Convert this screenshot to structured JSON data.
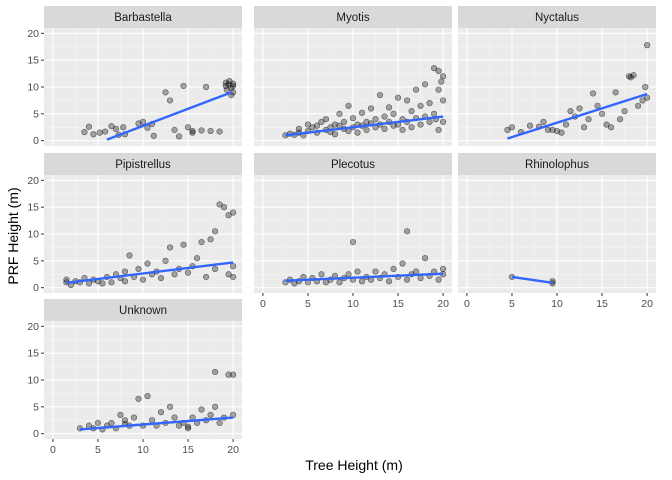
{
  "chart_data": {
    "type": "scatter",
    "xlabel": "Tree Height (m)",
    "ylabel": "PRF Height (m)",
    "xlim": [
      0,
      20
    ],
    "ylim": [
      0,
      20
    ],
    "x_ticks": [
      0,
      5,
      10,
      15,
      20
    ],
    "y_ticks": [
      0,
      5,
      10,
      15,
      20
    ],
    "grid": true,
    "point_color": "#000000",
    "trend_color": "#3366FF",
    "panel_background": "#EBEBEB",
    "strip_background": "#D9D9D9",
    "panels": [
      {
        "name": "Barbastella",
        "trend": {
          "x": [
            6,
            19.8
          ],
          "y": [
            0.2,
            9.0
          ]
        },
        "points": [
          [
            3.5,
            1.6
          ],
          [
            4,
            2.6
          ],
          [
            4.5,
            1.2
          ],
          [
            5.2,
            1.5
          ],
          [
            5.8,
            1.7
          ],
          [
            6.5,
            2.7
          ],
          [
            7,
            2.2
          ],
          [
            7.3,
            1.1
          ],
          [
            7.8,
            2.5
          ],
          [
            8,
            1.2
          ],
          [
            9.5,
            3.2
          ],
          [
            10,
            3.5
          ],
          [
            10.5,
            2.4
          ],
          [
            11,
            3.1
          ],
          [
            11.2,
            0.9
          ],
          [
            12.5,
            9.0
          ],
          [
            13,
            7.5
          ],
          [
            13.5,
            2.0
          ],
          [
            14,
            0.8
          ],
          [
            14.5,
            10.2
          ],
          [
            15,
            2.5
          ],
          [
            15.5,
            1.8
          ],
          [
            15.5,
            1.5
          ],
          [
            16.5,
            1.9
          ],
          [
            17,
            10.0
          ],
          [
            17.5,
            1.8
          ],
          [
            18.5,
            1.7
          ],
          [
            19.2,
            10.8
          ],
          [
            19.2,
            10.2
          ],
          [
            19.3,
            9.5
          ],
          [
            19.5,
            10.5
          ],
          [
            19.6,
            11.1
          ],
          [
            19.8,
            9.8
          ],
          [
            19.8,
            8.5
          ],
          [
            20,
            10.6
          ],
          [
            20,
            9.0
          ],
          [
            20,
            10.2
          ]
        ]
      },
      {
        "name": "Myotis",
        "trend": {
          "x": [
            2.5,
            20
          ],
          "y": [
            1.0,
            4.5
          ]
        },
        "points": [
          [
            2.5,
            1.0
          ],
          [
            3,
            1.3
          ],
          [
            3.5,
            1.1
          ],
          [
            4,
            1.5
          ],
          [
            4,
            2.2
          ],
          [
            4.5,
            1.0
          ],
          [
            5,
            1.8
          ],
          [
            5,
            3.0
          ],
          [
            5.5,
            2.5
          ],
          [
            6,
            1.5
          ],
          [
            6,
            2.8
          ],
          [
            6.5,
            3.5
          ],
          [
            7,
            2.0
          ],
          [
            7,
            4.0
          ],
          [
            7.5,
            1.6
          ],
          [
            7.5,
            2.5
          ],
          [
            8,
            3.0
          ],
          [
            8,
            1.2
          ],
          [
            8.5,
            2.8
          ],
          [
            8.5,
            5.0
          ],
          [
            9,
            2.2
          ],
          [
            9,
            3.5
          ],
          [
            9.5,
            1.8
          ],
          [
            9.5,
            6.5
          ],
          [
            10,
            2.5
          ],
          [
            10,
            4.2
          ],
          [
            10.5,
            3.0
          ],
          [
            10.5,
            1.5
          ],
          [
            11,
            2.8
          ],
          [
            11,
            5.2
          ],
          [
            11.5,
            3.5
          ],
          [
            11.5,
            2.0
          ],
          [
            12,
            3.2
          ],
          [
            12,
            6.0
          ],
          [
            12.5,
            2.5
          ],
          [
            12.5,
            4.0
          ],
          [
            13,
            3.0
          ],
          [
            13,
            8.5
          ],
          [
            13.5,
            2.2
          ],
          [
            13.5,
            4.5
          ],
          [
            14,
            3.5
          ],
          [
            14,
            6.2
          ],
          [
            14.5,
            2.8
          ],
          [
            14.5,
            5.0
          ],
          [
            15,
            3.0
          ],
          [
            15,
            8.0
          ],
          [
            15.5,
            4.0
          ],
          [
            15.5,
            2.0
          ],
          [
            16,
            3.5
          ],
          [
            16,
            7.5
          ],
          [
            16.5,
            2.5
          ],
          [
            16.5,
            5.5
          ],
          [
            17,
            4.2
          ],
          [
            17,
            9.5
          ],
          [
            17.5,
            3.0
          ],
          [
            17.5,
            6.5
          ],
          [
            18,
            4.5
          ],
          [
            18,
            10.5
          ],
          [
            18.5,
            3.5
          ],
          [
            18.5,
            7.0
          ],
          [
            19,
            13.5
          ],
          [
            19,
            5.0
          ],
          [
            19.2,
            4.0
          ],
          [
            19.5,
            13.0
          ],
          [
            19.5,
            9.5
          ],
          [
            19.8,
            11.0
          ],
          [
            20,
            12.0
          ],
          [
            20,
            3.5
          ],
          [
            20,
            7.5
          ],
          [
            19.5,
            2.0
          ]
        ]
      },
      {
        "name": "Nyctalus",
        "trend": {
          "x": [
            4.5,
            20
          ],
          "y": [
            0.4,
            8.7
          ]
        },
        "points": [
          [
            4.5,
            2.0
          ],
          [
            5,
            2.5
          ],
          [
            6,
            1.6
          ],
          [
            7,
            2.8
          ],
          [
            8,
            2.6
          ],
          [
            8.5,
            3.5
          ],
          [
            9,
            2.0
          ],
          [
            9.5,
            2.0
          ],
          [
            10,
            1.8
          ],
          [
            10.5,
            1.5
          ],
          [
            11,
            3.0
          ],
          [
            11.5,
            5.5
          ],
          [
            12,
            4.5
          ],
          [
            12.5,
            6.0
          ],
          [
            13,
            2.5
          ],
          [
            13.5,
            4.0
          ],
          [
            14,
            8.8
          ],
          [
            14.5,
            6.5
          ],
          [
            15,
            5.0
          ],
          [
            15.5,
            3.0
          ],
          [
            16,
            2.5
          ],
          [
            16.5,
            9.0
          ],
          [
            17,
            4.0
          ],
          [
            17.5,
            5.5
          ],
          [
            18,
            12.0
          ],
          [
            18.2,
            11.8
          ],
          [
            18.5,
            12.2
          ],
          [
            19,
            6.5
          ],
          [
            19.5,
            7.5
          ],
          [
            19.8,
            10.0
          ],
          [
            20,
            17.8
          ],
          [
            20,
            8.0
          ]
        ]
      },
      {
        "name": "Pipistrellus",
        "trend": {
          "x": [
            1.5,
            20
          ],
          "y": [
            0.9,
            4.7
          ]
        },
        "points": [
          [
            1.5,
            1.0
          ],
          [
            1.5,
            1.5
          ],
          [
            2,
            0.5
          ],
          [
            2.5,
            1.2
          ],
          [
            3,
            1.0
          ],
          [
            3.5,
            1.8
          ],
          [
            4,
            0.8
          ],
          [
            4.5,
            1.5
          ],
          [
            5,
            1.2
          ],
          [
            5.5,
            0.8
          ],
          [
            6,
            2.0
          ],
          [
            6.5,
            1.0
          ],
          [
            7,
            2.5
          ],
          [
            7.5,
            1.8
          ],
          [
            8,
            3.0
          ],
          [
            8,
            1.2
          ],
          [
            8.5,
            6.0
          ],
          [
            9,
            2.0
          ],
          [
            9.5,
            3.5
          ],
          [
            10,
            1.5
          ],
          [
            10.5,
            4.5
          ],
          [
            11,
            2.5
          ],
          [
            11.5,
            3.0
          ],
          [
            12,
            1.8
          ],
          [
            12.5,
            5.0
          ],
          [
            13,
            7.5
          ],
          [
            13.5,
            2.5
          ],
          [
            14,
            3.5
          ],
          [
            14.5,
            8.0
          ],
          [
            15,
            2.8
          ],
          [
            15.5,
            4.0
          ],
          [
            16,
            5.5
          ],
          [
            16.5,
            8.5
          ],
          [
            17,
            2.0
          ],
          [
            17.5,
            9.0
          ],
          [
            18,
            10.5
          ],
          [
            18,
            3.5
          ],
          [
            18.5,
            15.5
          ],
          [
            19,
            15.0
          ],
          [
            19.5,
            13.5
          ],
          [
            19.5,
            2.5
          ],
          [
            20,
            14.0
          ],
          [
            20,
            4.0
          ],
          [
            20,
            2.0
          ]
        ]
      },
      {
        "name": "Plecotus",
        "trend": {
          "x": [
            2.5,
            20
          ],
          "y": [
            1.3,
            2.6
          ]
        },
        "points": [
          [
            2.5,
            1.0
          ],
          [
            3,
            1.5
          ],
          [
            3.5,
            0.8
          ],
          [
            4,
            1.2
          ],
          [
            4.5,
            2.0
          ],
          [
            5,
            1.0
          ],
          [
            5.5,
            1.8
          ],
          [
            6,
            1.2
          ],
          [
            6.5,
            2.5
          ],
          [
            7,
            1.0
          ],
          [
            7.5,
            1.5
          ],
          [
            8,
            2.2
          ],
          [
            8.5,
            1.0
          ],
          [
            9,
            1.8
          ],
          [
            9.5,
            2.5
          ],
          [
            10,
            1.5
          ],
          [
            10.5,
            3.0
          ],
          [
            11,
            1.2
          ],
          [
            11.5,
            2.0
          ],
          [
            12,
            1.5
          ],
          [
            12.5,
            3.0
          ],
          [
            13,
            1.8
          ],
          [
            13.5,
            2.5
          ],
          [
            14,
            1.2
          ],
          [
            14.5,
            3.5
          ],
          [
            15,
            2.0
          ],
          [
            15.5,
            4.5
          ],
          [
            16,
            1.5
          ],
          [
            16,
            10.5
          ],
          [
            16.5,
            2.5
          ],
          [
            17,
            3.0
          ],
          [
            17.5,
            1.8
          ],
          [
            18,
            5.5
          ],
          [
            18.5,
            2.2
          ],
          [
            19,
            3.0
          ],
          [
            19.5,
            1.5
          ],
          [
            20,
            2.5
          ],
          [
            20,
            3.5
          ],
          [
            10,
            8.5
          ]
        ]
      },
      {
        "name": "Rhinolophus",
        "trend": {
          "x": [
            5,
            9.5
          ],
          "y": [
            2.0,
            0.9
          ]
        },
        "points": [
          [
            5,
            2.0
          ],
          [
            9.5,
            1.2
          ],
          [
            9.5,
            0.8
          ]
        ]
      },
      {
        "name": "Unknown",
        "trend": {
          "x": [
            3,
            20
          ],
          "y": [
            0.8,
            3.0
          ]
        },
        "points": [
          [
            3,
            1.0
          ],
          [
            4,
            1.5
          ],
          [
            4.5,
            1.0
          ],
          [
            5,
            2.0
          ],
          [
            5.5,
            0.8
          ],
          [
            6,
            1.5
          ],
          [
            6.5,
            2.0
          ],
          [
            7,
            1.0
          ],
          [
            7.5,
            3.5
          ],
          [
            8,
            1.8
          ],
          [
            8,
            2.5
          ],
          [
            8.5,
            1.5
          ],
          [
            9,
            3.0
          ],
          [
            9.5,
            6.5
          ],
          [
            10,
            1.5
          ],
          [
            10.5,
            7.0
          ],
          [
            11,
            2.5
          ],
          [
            11.5,
            1.5
          ],
          [
            12,
            4.0
          ],
          [
            12.5,
            2.0
          ],
          [
            13,
            5.0
          ],
          [
            13.5,
            3.0
          ],
          [
            14,
            1.5
          ],
          [
            14.5,
            2.0
          ],
          [
            15,
            1.0
          ],
          [
            15,
            1.3
          ],
          [
            15.5,
            3.0
          ],
          [
            16,
            2.0
          ],
          [
            16.5,
            4.5
          ],
          [
            17,
            2.5
          ],
          [
            17.5,
            3.5
          ],
          [
            18,
            11.5
          ],
          [
            18,
            5.0
          ],
          [
            18.5,
            2.0
          ],
          [
            19,
            3.0
          ],
          [
            19.5,
            11.0
          ],
          [
            20,
            11.0
          ],
          [
            20,
            3.5
          ]
        ]
      }
    ]
  }
}
